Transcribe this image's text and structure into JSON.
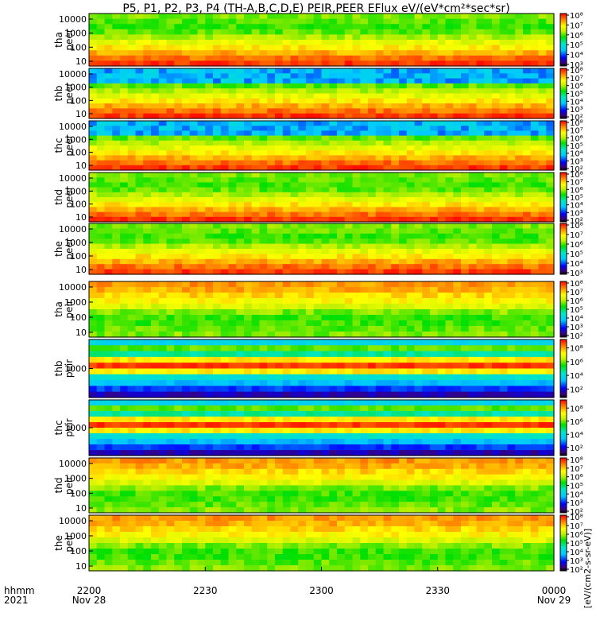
{
  "chart_data": {
    "type": "heatmap",
    "title": "P5, P1, P2, P3, P4 (TH-A,B,C,D,E) PEIR,PEER EFlux eV/(eV*cm²*sec*sr)",
    "colorbar_label": "[eV/(cm2-s-sr-eV)]",
    "colorbar_scale": "log",
    "x_axis": {
      "caption_top": "hhmm",
      "caption_bottom": "2021",
      "range": [
        "2021-11-28 22:00",
        "2021-11-29 00:00"
      ],
      "ticks": [
        {
          "label": "2200",
          "sublabel": "Nov 28",
          "time": "2021-11-28 22:00"
        },
        {
          "label": "2230",
          "sublabel": "",
          "time": "2021-11-28 22:30"
        },
        {
          "label": "2300",
          "sublabel": "",
          "time": "2021-11-28 23:00"
        },
        {
          "label": "2330",
          "sublabel": "",
          "time": "2021-11-28 23:30"
        },
        {
          "label": "0000",
          "sublabel": "Nov 29",
          "time": "2021-11-29 00:00"
        }
      ]
    },
    "panels": [
      {
        "id": "tha-peer",
        "probe": "tha",
        "species": "peer",
        "y_scale": "log",
        "y_ticks": [
          "10000",
          "1000",
          "100",
          "10"
        ],
        "colorbar_ticks": [
          "10⁸",
          "10⁷",
          "10⁶",
          "10⁵",
          "10⁴",
          "10³"
        ],
        "colorbar_range_exp": [
          3,
          8
        ]
      },
      {
        "id": "thb-peer",
        "probe": "thb",
        "species": "peer",
        "y_scale": "log",
        "y_ticks": [
          "10000",
          "1000",
          "100",
          "10"
        ],
        "colorbar_ticks": [
          "10⁸",
          "10⁷",
          "10⁶",
          "10⁵",
          "10⁴",
          "10³",
          "10²"
        ],
        "colorbar_range_exp": [
          2,
          8
        ]
      },
      {
        "id": "thc-peer",
        "probe": "thc",
        "species": "peer",
        "y_scale": "log",
        "y_ticks": [
          "10000",
          "1000",
          "100",
          "10"
        ],
        "colorbar_ticks": [
          "10⁸",
          "10⁷",
          "10⁶",
          "10⁵",
          "10⁴",
          "10³",
          "10²"
        ],
        "colorbar_range_exp": [
          2,
          8
        ]
      },
      {
        "id": "thd-peer",
        "probe": "thd",
        "species": "peer",
        "y_scale": "log",
        "y_ticks": [
          "10000",
          "1000",
          "100",
          "10"
        ],
        "colorbar_ticks": [
          "10⁸",
          "10⁷",
          "10⁶",
          "10⁵",
          "10⁴",
          "10³",
          "10²"
        ],
        "colorbar_range_exp": [
          2,
          8
        ]
      },
      {
        "id": "the-peer",
        "probe": "the",
        "species": "peer",
        "y_scale": "log",
        "y_ticks": [
          "10000",
          "1000",
          "100",
          "10"
        ],
        "colorbar_ticks": [
          "10⁸",
          "10⁷",
          "10⁶",
          "10⁵",
          "10⁴",
          "10³"
        ],
        "colorbar_range_exp": [
          3,
          8
        ]
      },
      {
        "id": "tha-peir",
        "probe": "tha",
        "species": "peir",
        "y_scale": "log",
        "y_ticks": [
          "10000",
          "1000",
          "100",
          "10"
        ],
        "colorbar_ticks": [
          "10⁸",
          "10⁷",
          "10⁶",
          "10⁵",
          "10⁴",
          "10³",
          "10²"
        ],
        "colorbar_range_exp": [
          2,
          8
        ]
      },
      {
        "id": "thb-peir",
        "probe": "thb",
        "species": "peir",
        "y_scale": "log",
        "y_ticks": [
          "1000"
        ],
        "colorbar_ticks": [
          "10⁸",
          "10⁶",
          "10⁴",
          "10²"
        ],
        "colorbar_range_exp": [
          1,
          9
        ]
      },
      {
        "id": "thc-peir",
        "probe": "thc",
        "species": "peir",
        "y_scale": "log",
        "y_ticks": [
          "1000"
        ],
        "colorbar_ticks": [
          "10⁸",
          "10⁶",
          "10⁴",
          "10²"
        ],
        "colorbar_range_exp": [
          1,
          9
        ]
      },
      {
        "id": "thd-peir",
        "probe": "thd",
        "species": "peir",
        "y_scale": "log",
        "y_ticks": [
          "10000",
          "1000",
          "100",
          "10"
        ],
        "colorbar_ticks": [
          "10⁸",
          "10⁷",
          "10⁶",
          "10⁵",
          "10⁴",
          "10³",
          "10²"
        ],
        "colorbar_range_exp": [
          2,
          8
        ]
      },
      {
        "id": "the-peir",
        "probe": "the",
        "species": "peir",
        "y_scale": "log",
        "y_ticks": [
          "10000",
          "1000",
          "100",
          "10"
        ],
        "colorbar_ticks": [
          "10⁸",
          "10⁷",
          "10⁶",
          "10⁵",
          "10⁴",
          "10³",
          "10²"
        ],
        "colorbar_range_exp": [
          2,
          8
        ]
      }
    ]
  }
}
